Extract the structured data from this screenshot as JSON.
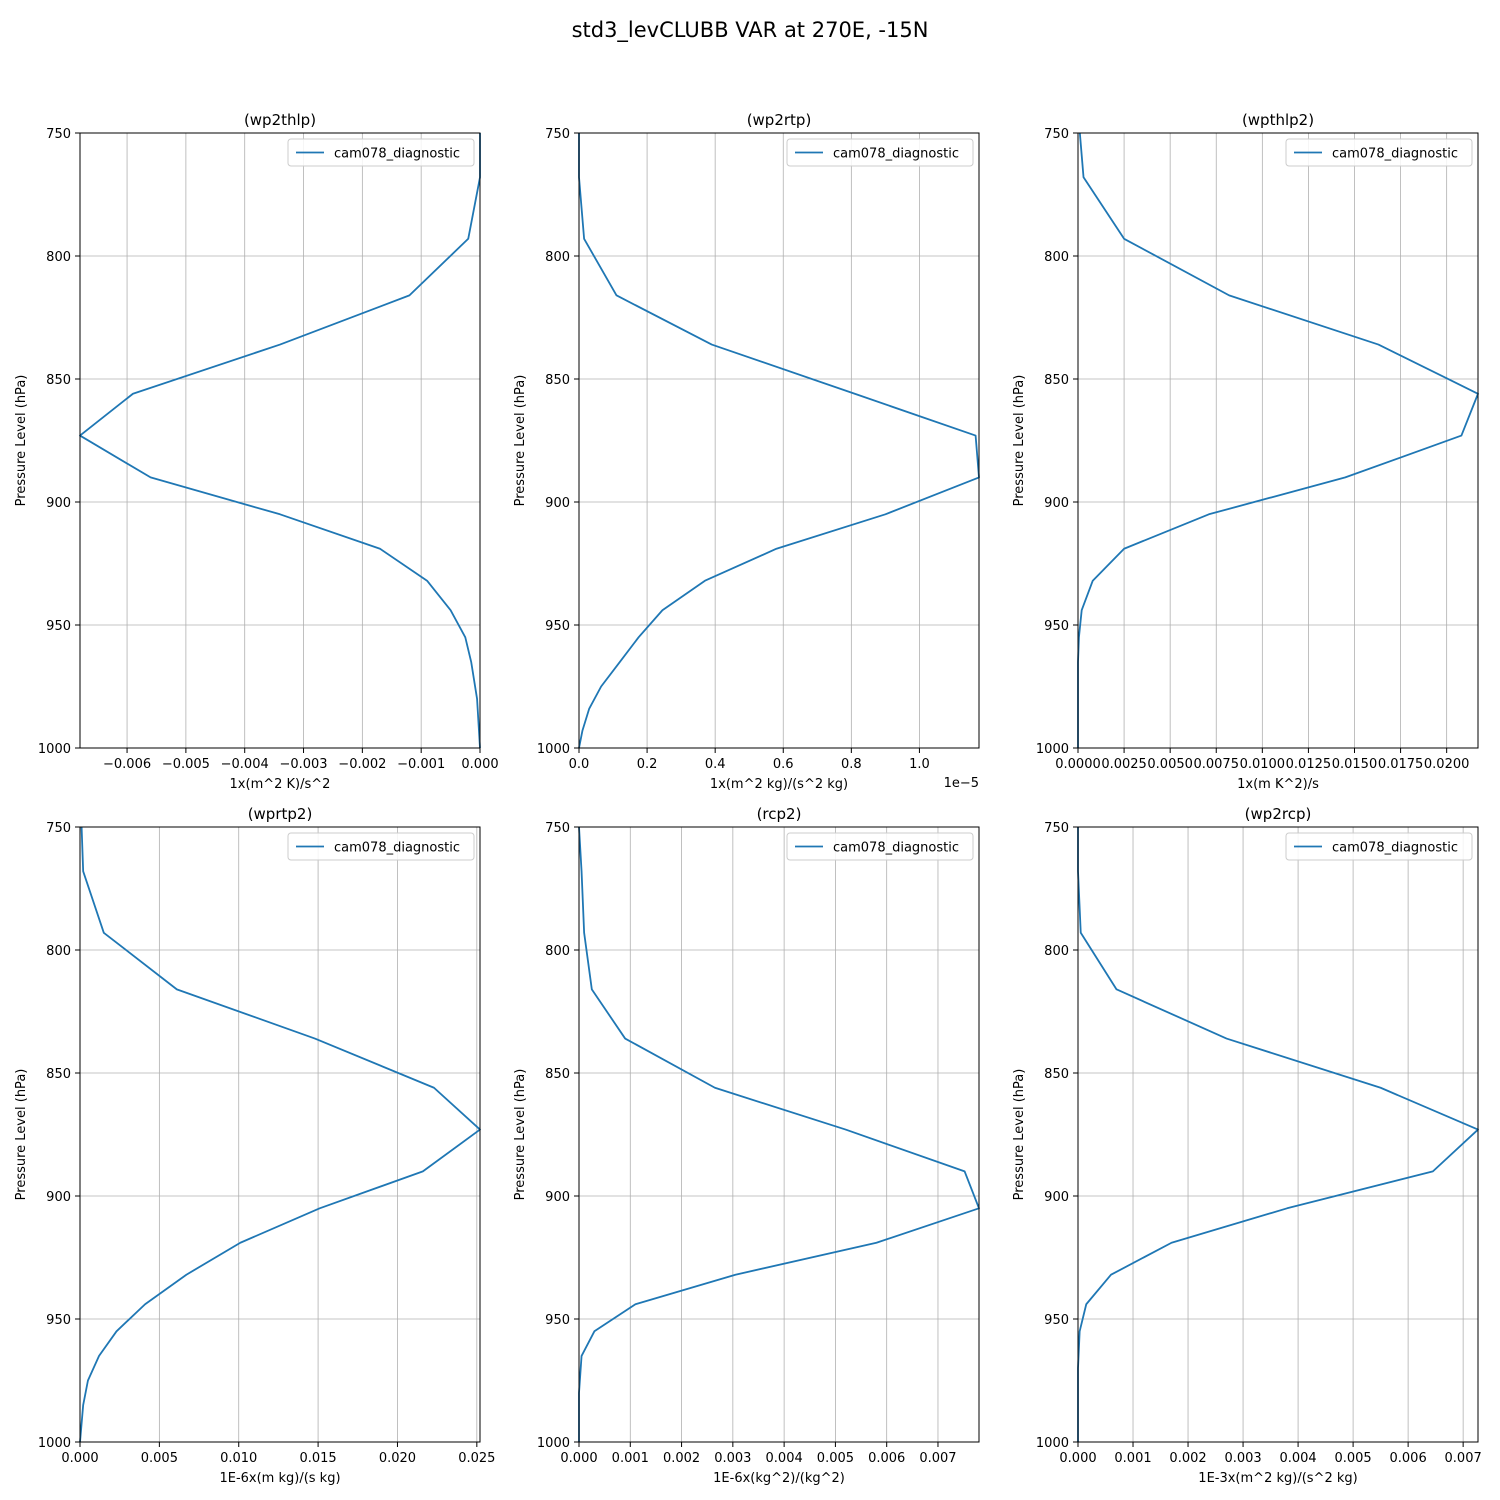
{
  "figure": {
    "title": "std3_levCLUBB VAR at 270E, -15N"
  },
  "chart_data": [
    {
      "type": "line",
      "title": "(wp2thlp)",
      "xlabel": "1x(m^2 K)/s^2",
      "ylabel": "Pressure Level (hPa)",
      "xlim": [
        -0.0068,
        0.0
      ],
      "ylim": [
        1000,
        750
      ],
      "y_inverted": true,
      "grid": true,
      "legend": "top-right",
      "xticks": [
        -0.006,
        -0.005,
        -0.004,
        -0.003,
        -0.002,
        -0.001,
        0.0
      ],
      "xtick_labels": [
        "−0.006",
        "−0.005",
        "−0.004",
        "−0.003",
        "−0.002",
        "−0.001",
        "0.000"
      ],
      "yticks": [
        750,
        800,
        850,
        900,
        950,
        1000
      ],
      "ytick_labels": [
        "750",
        "800",
        "850",
        "900",
        "950",
        "1000"
      ],
      "offset_text": "",
      "series": [
        {
          "name": "cam078_diagnostic",
          "color": "#1f77b4",
          "x": [
            0,
            0,
            -0.0002,
            -0.0012,
            -0.0034,
            -0.0059,
            -0.0068,
            -0.0056,
            -0.0034,
            -0.0017,
            -0.0009,
            -0.0005,
            -0.00025,
            -0.00015,
            -5e-05,
            0
          ],
          "y": [
            750,
            768,
            793,
            816,
            836,
            856,
            873,
            890,
            905,
            919,
            932,
            944,
            955,
            965,
            980,
            1000
          ]
        }
      ]
    },
    {
      "type": "line",
      "title": "(wp2rtp)",
      "xlabel": "1x(m^2 kg)/(s^2 kg)",
      "ylabel": "Pressure Level (hPa)",
      "xlim": [
        0.0,
        1.175
      ],
      "ylim": [
        1000,
        750
      ],
      "y_inverted": true,
      "grid": true,
      "legend": "top-right",
      "xticks": [
        0.0,
        0.2,
        0.4,
        0.6,
        0.8,
        1.0
      ],
      "xtick_labels": [
        "0.0",
        "0.2",
        "0.4",
        "0.6",
        "0.8",
        "1.0"
      ],
      "yticks": [
        750,
        800,
        850,
        900,
        950,
        1000
      ],
      "ytick_labels": [
        "750",
        "800",
        "850",
        "900",
        "950",
        "1000"
      ],
      "offset_text": "1e−5",
      "series": [
        {
          "name": "cam078_diagnostic",
          "color": "#1f77b4",
          "x": [
            0,
            0,
            0.015,
            0.11,
            0.39,
            0.81,
            1.165,
            1.175,
            0.9,
            0.58,
            0.37,
            0.245,
            0.175,
            0.12,
            0.065,
            0.03,
            0.01,
            0
          ],
          "y": [
            750,
            768,
            793,
            816,
            836,
            856,
            873,
            890,
            905,
            919,
            932,
            944,
            955,
            965,
            975,
            984,
            993,
            1000
          ]
        }
      ]
    },
    {
      "type": "line",
      "title": "(wpthlp2)",
      "xlabel": "1x(m K^2)/s",
      "ylabel": "Pressure Level (hPa)",
      "xlim": [
        0.0,
        0.0217
      ],
      "ylim": [
        1000,
        750
      ],
      "y_inverted": true,
      "grid": true,
      "legend": "top-right",
      "xticks": [
        0.0,
        0.0025,
        0.005,
        0.0075,
        0.01,
        0.0125,
        0.015,
        0.0175,
        0.02
      ],
      "xtick_labels": [
        "0.0000",
        "0.0025",
        "0.0050",
        "0.0075",
        "0.0100",
        "0.0125",
        "0.0150",
        "0.0175",
        "0.0200"
      ],
      "yticks": [
        750,
        800,
        850,
        900,
        950,
        1000
      ],
      "ytick_labels": [
        "750",
        "800",
        "850",
        "900",
        "950",
        "1000"
      ],
      "offset_text": "",
      "series": [
        {
          "name": "cam078_diagnostic",
          "color": "#1f77b4",
          "x": [
            0.0001,
            0.0003,
            0.0025,
            0.0082,
            0.0163,
            0.0217,
            0.0208,
            0.0145,
            0.0071,
            0.0025,
            0.0008,
            0.0002,
            5e-05,
            0,
            0,
            0
          ],
          "y": [
            750,
            768,
            793,
            816,
            836,
            856,
            873,
            890,
            905,
            919,
            932,
            944,
            955,
            965,
            980,
            1000
          ]
        }
      ]
    },
    {
      "type": "line",
      "title": "(wprtp2)",
      "xlabel": "1E-6x(m kg)/(s kg)",
      "ylabel": "Pressure Level (hPa)",
      "xlim": [
        0.0,
        0.0252
      ],
      "ylim": [
        1000,
        750
      ],
      "y_inverted": true,
      "grid": true,
      "legend": "top-right",
      "xticks": [
        0.0,
        0.005,
        0.01,
        0.015,
        0.02,
        0.025
      ],
      "xtick_labels": [
        "0.000",
        "0.005",
        "0.010",
        "0.015",
        "0.020",
        "0.025"
      ],
      "yticks": [
        750,
        800,
        850,
        900,
        950,
        1000
      ],
      "ytick_labels": [
        "750",
        "800",
        "850",
        "900",
        "950",
        "1000"
      ],
      "offset_text": "",
      "series": [
        {
          "name": "cam078_diagnostic",
          "color": "#1f77b4",
          "x": [
            0.0001,
            0.0002,
            0.0015,
            0.0061,
            0.0148,
            0.0223,
            0.0252,
            0.0216,
            0.0151,
            0.0101,
            0.0067,
            0.0041,
            0.0023,
            0.0012,
            0.0005,
            0.0002,
            0
          ],
          "y": [
            750,
            768,
            793,
            816,
            836,
            856,
            873,
            890,
            905,
            919,
            932,
            944,
            955,
            965,
            975,
            985,
            1000
          ]
        }
      ]
    },
    {
      "type": "line",
      "title": "(rcp2)",
      "xlabel": "1E-6x(kg^2)/(kg^2)",
      "ylabel": "Pressure Level (hPa)",
      "xlim": [
        0.0,
        0.0078
      ],
      "ylim": [
        1000,
        750
      ],
      "y_inverted": true,
      "grid": true,
      "legend": "top-right",
      "xticks": [
        0.0,
        0.001,
        0.002,
        0.003,
        0.004,
        0.005,
        0.006,
        0.007
      ],
      "xtick_labels": [
        "0.000",
        "0.001",
        "0.002",
        "0.003",
        "0.004",
        "0.005",
        "0.006",
        "0.007"
      ],
      "yticks": [
        750,
        800,
        850,
        900,
        950,
        1000
      ],
      "ytick_labels": [
        "750",
        "800",
        "850",
        "900",
        "950",
        "1000"
      ],
      "offset_text": "",
      "series": [
        {
          "name": "cam078_diagnostic",
          "color": "#1f77b4",
          "x": [
            0,
            5e-05,
            0.0001,
            0.00025,
            0.0009,
            0.00265,
            0.0052,
            0.00752,
            0.0078,
            0.0058,
            0.00305,
            0.0011,
            0.0003,
            5e-05,
            0,
            0
          ],
          "y": [
            750,
            768,
            793,
            816,
            836,
            856,
            873,
            890,
            905,
            919,
            932,
            944,
            955,
            965,
            980,
            1000
          ]
        }
      ]
    },
    {
      "type": "line",
      "title": "(wp2rcp)",
      "xlabel": "1E-3x(m^2 kg)/(s^2 kg)",
      "ylabel": "Pressure Level (hPa)",
      "xlim": [
        0.0,
        0.00727
      ],
      "ylim": [
        1000,
        750
      ],
      "y_inverted": true,
      "grid": true,
      "legend": "top-right",
      "xticks": [
        0.0,
        0.001,
        0.002,
        0.003,
        0.004,
        0.005,
        0.006,
        0.007
      ],
      "xtick_labels": [
        "0.000",
        "0.001",
        "0.002",
        "0.003",
        "0.004",
        "0.005",
        "0.006",
        "0.007"
      ],
      "yticks": [
        750,
        800,
        850,
        900,
        950,
        1000
      ],
      "ytick_labels": [
        "750",
        "800",
        "850",
        "900",
        "950",
        "1000"
      ],
      "offset_text": "",
      "series": [
        {
          "name": "cam078_diagnostic",
          "color": "#1f77b4",
          "x": [
            0,
            0,
            5e-05,
            0.0007,
            0.0027,
            0.0055,
            0.00727,
            0.00645,
            0.0038,
            0.0017,
            0.0006,
            0.00015,
            3e-05,
            0,
            0
          ],
          "y": [
            750,
            768,
            793,
            816,
            836,
            856,
            873,
            890,
            905,
            919,
            932,
            944,
            955,
            970,
            1000
          ]
        }
      ]
    }
  ]
}
